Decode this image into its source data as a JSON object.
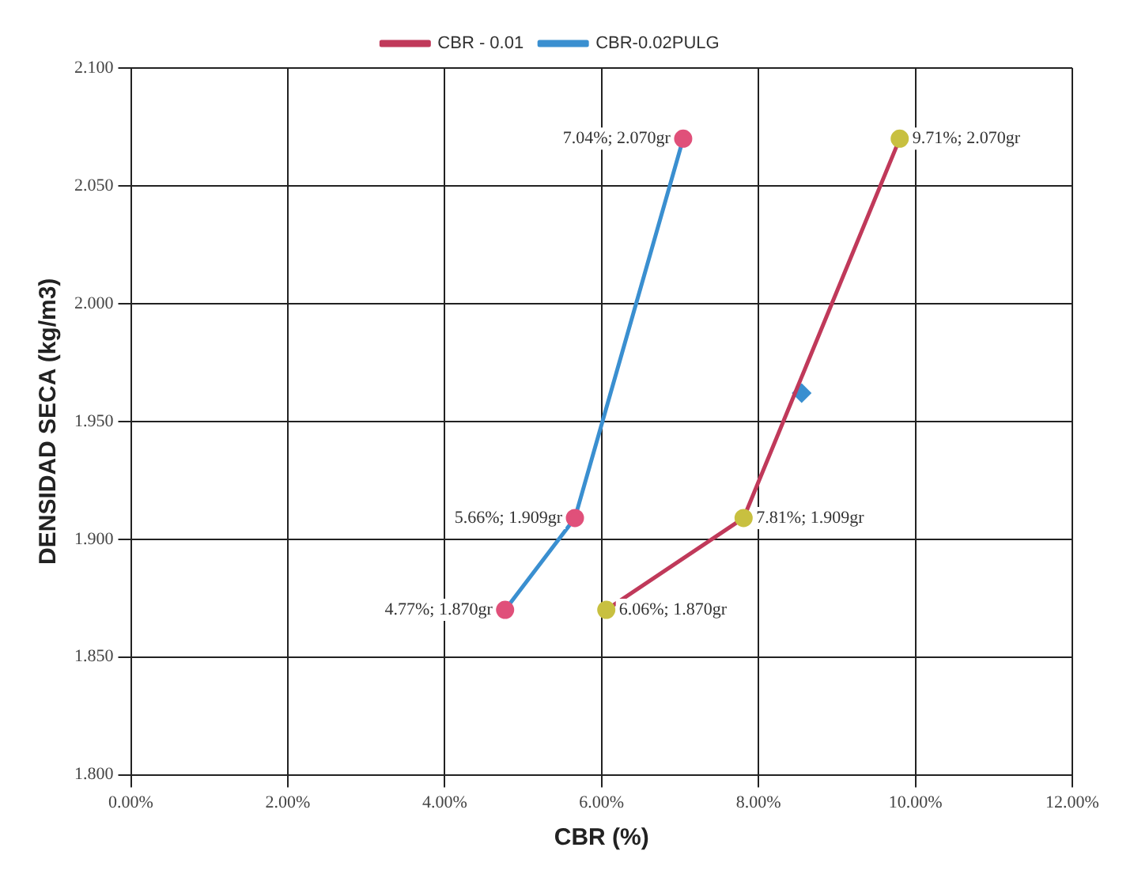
{
  "chart_data": {
    "type": "line",
    "xlabel": "CBR (%)",
    "ylabel": "DENSIDAD SECA (kg/m3)",
    "legend": "top",
    "grid": true,
    "marker": "circle",
    "xlim": [
      0,
      12
    ],
    "xticks": [
      {
        "value": 0,
        "label": "0.00%"
      },
      {
        "value": 2,
        "label": "2.00%"
      },
      {
        "value": 4,
        "label": "4.00%"
      },
      {
        "value": 6,
        "label": "6.00%"
      },
      {
        "value": 8,
        "label": "8.00%"
      },
      {
        "value": 10,
        "label": "10.00%"
      },
      {
        "value": 12,
        "label": "12.00%"
      }
    ],
    "ylim": [
      1.8,
      2.1
    ],
    "yticks": [
      {
        "value": 1.8,
        "label": "1.800"
      },
      {
        "value": 1.85,
        "label": "1.850"
      },
      {
        "value": 1.9,
        "label": "1.900"
      },
      {
        "value": 1.95,
        "label": "1.950"
      },
      {
        "value": 2.0,
        "label": "2.000"
      },
      {
        "value": 2.05,
        "label": "2.050"
      },
      {
        "value": 2.1,
        "label": "2.100"
      }
    ],
    "series": [
      {
        "name": "CBR - 0.01",
        "color": "#c0395a",
        "colors": [
          "#c8c040",
          "#c8c040",
          "#c8c040"
        ],
        "x": [
          6.06,
          7.81,
          9.8
        ],
        "values": [
          1.87,
          1.909,
          2.07
        ],
        "value_labels": [
          "6.06%; 1.870gr",
          "7.81%; 1.909gr",
          "9.71%; 2.070gr"
        ]
      },
      {
        "name": "CBR-0.02PULG",
        "color": "#3a8fd0",
        "colors": [
          "#e0507a",
          "#e0507a",
          "#e0507a"
        ],
        "x": [
          4.77,
          5.66,
          7.04
        ],
        "values": [
          1.87,
          1.909,
          2.07
        ],
        "value_labels": [
          "4.77%; 1.870gr",
          "5.66%; 1.909gr",
          "7.04%; 2.070gr"
        ]
      },
      {
        "type": "scatter",
        "marker": "diamond",
        "color": "#3a8fd0",
        "x": [
          8.55
        ],
        "values": [
          1.962
        ]
      }
    ]
  }
}
